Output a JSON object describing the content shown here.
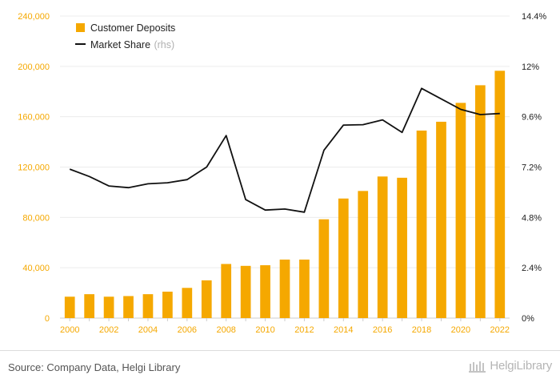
{
  "chart_data": {
    "type": "bar",
    "x": [
      2000,
      2001,
      2002,
      2003,
      2004,
      2005,
      2006,
      2007,
      2008,
      2009,
      2010,
      2011,
      2012,
      2013,
      2014,
      2015,
      2016,
      2017,
      2018,
      2019,
      2020,
      2021,
      2022
    ],
    "series": [
      {
        "name": "Customer Deposits",
        "type": "bar",
        "axis": "left",
        "color": "#f5a800",
        "values": [
          17000,
          19000,
          17000,
          17500,
          19000,
          21000,
          24000,
          30000,
          43000,
          41500,
          42000,
          46500,
          46500,
          78500,
          95000,
          101000,
          112500,
          111500,
          149000,
          156000,
          171000,
          185000,
          196500
        ]
      },
      {
        "name": "Market Share",
        "name_suffix": "(rhs)",
        "type": "line",
        "axis": "right",
        "color": "#111111",
        "values": [
          7.1,
          6.75,
          6.3,
          6.22,
          6.4,
          6.45,
          6.6,
          7.2,
          8.7,
          5.65,
          5.15,
          5.2,
          5.05,
          8.0,
          9.2,
          9.22,
          9.45,
          8.85,
          10.95,
          10.45,
          9.95,
          9.7,
          9.75
        ]
      }
    ],
    "y_left": {
      "ticks": [
        "0",
        "40,000",
        "80,000",
        "120,000",
        "160,000",
        "200,000",
        "240,000"
      ],
      "lim": [
        0,
        240000
      ]
    },
    "y_right": {
      "ticks": [
        "0%",
        "2.4%",
        "4.8%",
        "7.2%",
        "9.6%",
        "12%",
        "14.4%"
      ],
      "lim": [
        0,
        14.4
      ]
    },
    "x_ticks": [
      "2000",
      "2002",
      "2004",
      "2006",
      "2008",
      "2010",
      "2012",
      "2014",
      "2016",
      "2018",
      "2020",
      "2022"
    ],
    "grid": true,
    "legend_position": "top-left"
  },
  "footer": {
    "source": "Source: Company Data, Helgi Library",
    "logo": "HelgiLibrary"
  }
}
